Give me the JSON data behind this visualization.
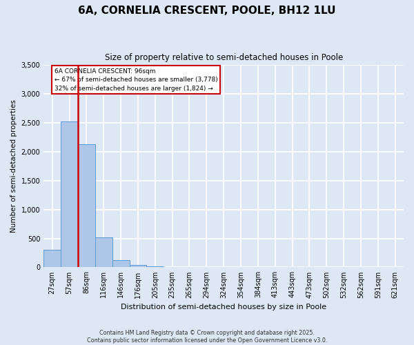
{
  "title": "6A, CORNELIA CRESCENT, POOLE, BH12 1LU",
  "subtitle": "Size of property relative to semi-detached houses in Poole",
  "xlabel": "Distribution of semi-detached houses by size in Poole",
  "ylabel": "Number of semi-detached properties",
  "bin_labels": [
    "27sqm",
    "57sqm",
    "86sqm",
    "116sqm",
    "146sqm",
    "176sqm",
    "205sqm",
    "235sqm",
    "265sqm",
    "294sqm",
    "324sqm",
    "354sqm",
    "384sqm",
    "413sqm",
    "443sqm",
    "473sqm",
    "502sqm",
    "532sqm",
    "562sqm",
    "591sqm",
    "621sqm"
  ],
  "bar_values": [
    300,
    2530,
    2130,
    520,
    120,
    40,
    15,
    3,
    1,
    0,
    0,
    0,
    0,
    0,
    0,
    0,
    0,
    0,
    0,
    0,
    0
  ],
  "bar_color": "#aec6e8",
  "bar_edge_color": "#5b9bd5",
  "property_line_label": "6A CORNELIA CRESCENT: 96sqm",
  "annotation_line1": "← 67% of semi-detached houses are smaller (3,778)",
  "annotation_line2": "32% of semi-detached houses are larger (1,824) →",
  "line_color": "#cc0000",
  "box_edge_color": "#cc0000",
  "ylim": [
    0,
    3500
  ],
  "yticks": [
    0,
    500,
    1000,
    1500,
    2000,
    2500,
    3000,
    3500
  ],
  "background_color": "#dde8f4",
  "plot_bg_color": "#dde8f4",
  "grid_color": "#ffffff",
  "footer_line1": "Contains HM Land Registry data © Crown copyright and database right 2025.",
  "footer_line2": "Contains public sector information licensed under the Open Government Licence v3.0."
}
